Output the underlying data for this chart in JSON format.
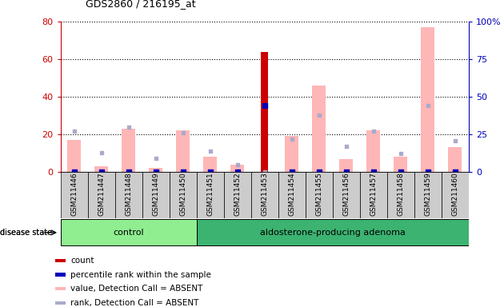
{
  "title": "GDS2860 / 216195_at",
  "samples": [
    "GSM211446",
    "GSM211447",
    "GSM211448",
    "GSM211449",
    "GSM211450",
    "GSM211451",
    "GSM211452",
    "GSM211453",
    "GSM211454",
    "GSM211455",
    "GSM211456",
    "GSM211457",
    "GSM211458",
    "GSM211459",
    "GSM211460"
  ],
  "count_values": [
    0,
    0,
    0,
    0,
    0,
    0,
    0,
    64,
    0,
    0,
    0,
    0,
    0,
    0,
    0
  ],
  "percentile_values": [
    0,
    0,
    0,
    0,
    0,
    0,
    0,
    44,
    0,
    0,
    0,
    0,
    0,
    0,
    0
  ],
  "absent_value": [
    17,
    3,
    23,
    2,
    22,
    8,
    4,
    0,
    19,
    46,
    7,
    22,
    8,
    77,
    13
  ],
  "absent_rank": [
    27,
    13,
    30,
    9,
    26,
    14,
    5,
    0,
    22,
    38,
    17,
    27,
    12,
    44,
    21
  ],
  "ylim_left": [
    0,
    80
  ],
  "ylim_right": [
    0,
    100
  ],
  "yticks_left": [
    0,
    20,
    40,
    60,
    80
  ],
  "yticks_right": [
    0,
    25,
    50,
    75,
    100
  ],
  "ytick_labels_left": [
    "0",
    "20",
    "40",
    "60",
    "80"
  ],
  "ytick_labels_right": [
    "0",
    "25",
    "50",
    "75",
    "100%"
  ],
  "control_label": "control",
  "disease_label": "aldosterone-producing adenoma",
  "disease_state_label": "disease state",
  "n_control": 5,
  "legend_items": [
    {
      "label": "count",
      "color": "#cc0000"
    },
    {
      "label": "percentile rank within the sample",
      "color": "#0000bb"
    },
    {
      "label": "value, Detection Call = ABSENT",
      "color": "#ffb6b6"
    },
    {
      "label": "rank, Detection Call = ABSENT",
      "color": "#aaaacc"
    }
  ],
  "bar_color_count": "#cc0000",
  "bar_color_absent_value": "#ffb6b6",
  "dot_color_percentile": "#0000bb",
  "dot_color_absent_rank": "#aaaacc",
  "axis_left_color": "#cc0000",
  "axis_right_color": "#0000bb",
  "bg_control": "#90ee90",
  "bg_disease": "#3cb371"
}
